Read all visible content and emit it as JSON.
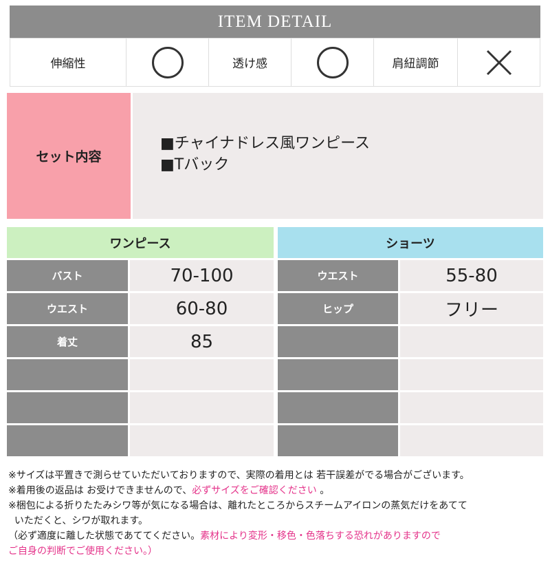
{
  "header": {
    "title": "ITEM DETAIL"
  },
  "attributes": [
    {
      "label": "伸縮性",
      "value": "circle",
      "icon": "circle-icon"
    },
    {
      "label": "透け感",
      "value": "circle",
      "icon": "circle-icon"
    },
    {
      "label": "肩紐調節",
      "value": "cross",
      "icon": "cross-icon"
    }
  ],
  "set": {
    "label": "セット内容",
    "items": [
      "■チャイナドレス風ワンピース",
      "■Tバック"
    ]
  },
  "sizes": {
    "onepiece": {
      "title": "ワンピース",
      "rows": [
        {
          "label": "バスト",
          "value": "70-100"
        },
        {
          "label": "ウエスト",
          "value": "60-80"
        },
        {
          "label": "着丈",
          "value": "85"
        },
        {
          "label": "",
          "value": ""
        },
        {
          "label": "",
          "value": ""
        },
        {
          "label": "",
          "value": ""
        }
      ]
    },
    "shorts": {
      "title": "ショーツ",
      "rows": [
        {
          "label": "ウエスト",
          "value": "55-80"
        },
        {
          "label": "ヒップ",
          "value": "フリー"
        },
        {
          "label": "",
          "value": ""
        },
        {
          "label": "",
          "value": ""
        },
        {
          "label": "",
          "value": ""
        },
        {
          "label": "",
          "value": ""
        }
      ]
    }
  },
  "colors": {
    "header": "#8c8c8c",
    "set_label": "#f8a0aa",
    "onepiece": "#ccf0c0",
    "shorts": "#a8e0ee",
    "accent_text": "#e4338a"
  },
  "notes": {
    "l1": "※サイズは平置きで測らせていただいておりますので、実際の着用とは 若干誤差がでる場合がございます。",
    "l2a": "※着用後の返品は お受けできませんので、",
    "l2b": "必ずサイズをご確認ください",
    "l2c": " 。",
    "l3": "※梱包による折りたたみシワ等が気になる場合は、離れたところからスチームアイロンの蒸気だけをあてて",
    "l4": "  いただくと、シワが取れます。",
    "l5a": "（必ず適度に離した状態であててください。",
    "l5b": "素材により変形・移色・色落ちする恐れがありますので",
    "l6": "ご自身の判断でご使用ください。）"
  }
}
